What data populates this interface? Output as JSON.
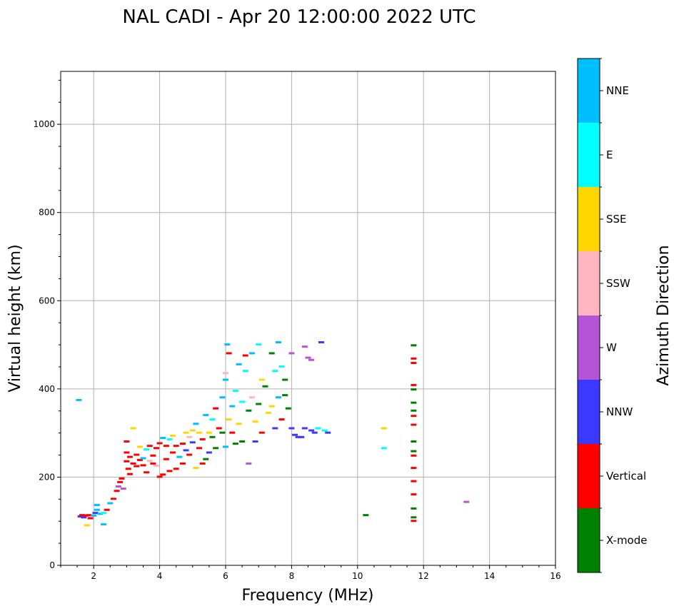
{
  "chart_data": {
    "type": "scatter",
    "title": "NAL CADI - Apr 20 12:00:00 2022 UTC",
    "xlabel": "Frequency (MHz)",
    "ylabel": "Virtual height (km)",
    "xlim": [
      1,
      16
    ],
    "ylim": [
      0,
      1120
    ],
    "xticks": [
      2,
      4,
      6,
      8,
      10,
      12,
      14,
      16
    ],
    "yticks": [
      0,
      200,
      400,
      600,
      800,
      1000
    ],
    "grid": true,
    "colorbar": {
      "label": "Azimuth Direction",
      "categories": [
        {
          "name": "X-mode",
          "color": "#008000"
        },
        {
          "name": "Vertical",
          "color": "#ff0000"
        },
        {
          "name": "NNW",
          "color": "#3a3aff"
        },
        {
          "name": "W",
          "color": "#b455d6"
        },
        {
          "name": "SSW",
          "color": "#ffb6c1"
        },
        {
          "name": "SSE",
          "color": "#ffd700"
        },
        {
          "name": "E",
          "color": "#00ffff"
        },
        {
          "name": "NNE",
          "color": "#00bfff"
        }
      ]
    },
    "points": [
      [
        1.55,
        374,
        "NNE"
      ],
      [
        1.6,
        110,
        "NNW"
      ],
      [
        1.65,
        113,
        "Vertical"
      ],
      [
        1.7,
        108,
        "NNW"
      ],
      [
        1.75,
        112,
        "Vertical"
      ],
      [
        1.8,
        90,
        "SSE"
      ],
      [
        1.85,
        113,
        "Vertical"
      ],
      [
        1.9,
        106,
        "Vertical"
      ],
      [
        2.0,
        112,
        "NNE"
      ],
      [
        2.05,
        118,
        "NNW"
      ],
      [
        2.1,
        125,
        "NNE"
      ],
      [
        2.1,
        136,
        "NNE"
      ],
      [
        2.2,
        116,
        "NNE"
      ],
      [
        2.3,
        92,
        "NNE"
      ],
      [
        2.3,
        118,
        "E"
      ],
      [
        2.4,
        125,
        "Vertical"
      ],
      [
        2.5,
        140,
        "NNE"
      ],
      [
        2.6,
        150,
        "Vertical"
      ],
      [
        2.7,
        168,
        "Vertical"
      ],
      [
        2.75,
        178,
        "W"
      ],
      [
        2.8,
        188,
        "Vertical"
      ],
      [
        2.85,
        196,
        "Vertical"
      ],
      [
        2.9,
        173,
        "W"
      ],
      [
        3.0,
        280,
        "Vertical"
      ],
      [
        3.0,
        255,
        "Vertical"
      ],
      [
        3.0,
        235,
        "Vertical"
      ],
      [
        3.05,
        218,
        "Vertical"
      ],
      [
        3.1,
        206,
        "Vertical"
      ],
      [
        3.1,
        245,
        "Vertical"
      ],
      [
        3.2,
        310,
        "SSE"
      ],
      [
        3.2,
        230,
        "Vertical"
      ],
      [
        3.3,
        250,
        "Vertical"
      ],
      [
        3.3,
        224,
        "Vertical"
      ],
      [
        3.4,
        268,
        "SSE"
      ],
      [
        3.4,
        238,
        "Vertical"
      ],
      [
        3.5,
        242,
        "NNE"
      ],
      [
        3.5,
        226,
        "Vertical"
      ],
      [
        3.6,
        262,
        "E"
      ],
      [
        3.6,
        210,
        "Vertical"
      ],
      [
        3.7,
        236,
        "SSW"
      ],
      [
        3.7,
        270,
        "Vertical"
      ],
      [
        3.8,
        248,
        "Vertical"
      ],
      [
        3.8,
        230,
        "Vertical"
      ],
      [
        3.9,
        265,
        "Vertical"
      ],
      [
        3.9,
        225,
        "SSW"
      ],
      [
        4.0,
        200,
        "Vertical"
      ],
      [
        4.0,
        276,
        "Vertical"
      ],
      [
        4.1,
        288,
        "NNE"
      ],
      [
        4.1,
        205,
        "Vertical"
      ],
      [
        4.2,
        270,
        "Vertical"
      ],
      [
        4.2,
        240,
        "Vertical"
      ],
      [
        4.3,
        213,
        "Vertical"
      ],
      [
        4.3,
        285,
        "E"
      ],
      [
        4.4,
        293,
        "SSE"
      ],
      [
        4.4,
        255,
        "Vertical"
      ],
      [
        4.5,
        218,
        "Vertical"
      ],
      [
        4.5,
        270,
        "Vertical"
      ],
      [
        4.6,
        245,
        "NNE"
      ],
      [
        4.7,
        275,
        "Vertical"
      ],
      [
        4.7,
        230,
        "Vertical"
      ],
      [
        4.8,
        300,
        "SSE"
      ],
      [
        4.8,
        260,
        "NNW"
      ],
      [
        4.9,
        290,
        "SSW"
      ],
      [
        4.9,
        250,
        "Vertical"
      ],
      [
        5.0,
        305,
        "SSE"
      ],
      [
        5.0,
        278,
        "NNW"
      ],
      [
        5.1,
        220,
        "SSE"
      ],
      [
        5.1,
        320,
        "NNE"
      ],
      [
        5.2,
        300,
        "SSE"
      ],
      [
        5.2,
        265,
        "Vertical"
      ],
      [
        5.3,
        230,
        "Vertical"
      ],
      [
        5.3,
        285,
        "Vertical"
      ],
      [
        5.4,
        340,
        "NNE"
      ],
      [
        5.4,
        240,
        "X-mode"
      ],
      [
        5.5,
        300,
        "SSE"
      ],
      [
        5.5,
        255,
        "NNW"
      ],
      [
        5.6,
        330,
        "E"
      ],
      [
        5.6,
        290,
        "X-mode"
      ],
      [
        5.7,
        355,
        "Vertical"
      ],
      [
        5.7,
        265,
        "X-mode"
      ],
      [
        5.8,
        310,
        "Vertical"
      ],
      [
        5.9,
        300,
        "X-mode"
      ],
      [
        5.9,
        380,
        "NNE"
      ],
      [
        6.0,
        420,
        "NNE"
      ],
      [
        6.0,
        435,
        "SSW"
      ],
      [
        6.0,
        268,
        "NNE"
      ],
      [
        6.05,
        500,
        "NNE"
      ],
      [
        6.1,
        480,
        "Vertical"
      ],
      [
        6.1,
        330,
        "SSE"
      ],
      [
        6.2,
        360,
        "NNE"
      ],
      [
        6.2,
        300,
        "Vertical"
      ],
      [
        6.3,
        395,
        "E"
      ],
      [
        6.3,
        275,
        "X-mode"
      ],
      [
        6.4,
        455,
        "NNE"
      ],
      [
        6.4,
        320,
        "SSE"
      ],
      [
        6.5,
        370,
        "E"
      ],
      [
        6.5,
        280,
        "X-mode"
      ],
      [
        6.6,
        475,
        "Vertical"
      ],
      [
        6.6,
        440,
        "E"
      ],
      [
        6.7,
        230,
        "W"
      ],
      [
        6.7,
        350,
        "X-mode"
      ],
      [
        6.8,
        480,
        "NNE"
      ],
      [
        6.8,
        380,
        "SSW"
      ],
      [
        6.9,
        325,
        "SSE"
      ],
      [
        6.9,
        280,
        "NNW"
      ],
      [
        7.0,
        500,
        "E"
      ],
      [
        7.0,
        365,
        "X-mode"
      ],
      [
        7.1,
        420,
        "SSE"
      ],
      [
        7.1,
        300,
        "Vertical"
      ],
      [
        7.2,
        405,
        "X-mode"
      ],
      [
        7.3,
        345,
        "SSE"
      ],
      [
        7.4,
        480,
        "X-mode"
      ],
      [
        7.4,
        360,
        "SSE"
      ],
      [
        7.5,
        440,
        "E"
      ],
      [
        7.5,
        310,
        "NNW"
      ],
      [
        7.6,
        505,
        "NNE"
      ],
      [
        7.6,
        380,
        "NNE"
      ],
      [
        7.7,
        450,
        "E"
      ],
      [
        7.7,
        330,
        "Vertical"
      ],
      [
        7.8,
        385,
        "X-mode"
      ],
      [
        7.8,
        420,
        "X-mode"
      ],
      [
        7.9,
        355,
        "X-mode"
      ],
      [
        8.0,
        480,
        "W"
      ],
      [
        8.0,
        310,
        "NNW"
      ],
      [
        8.1,
        295,
        "NNW"
      ],
      [
        8.2,
        290,
        "NNW"
      ],
      [
        8.3,
        290,
        "NNW"
      ],
      [
        8.4,
        495,
        "W"
      ],
      [
        8.4,
        310,
        "NNW"
      ],
      [
        8.5,
        470,
        "W"
      ],
      [
        8.6,
        465,
        "W"
      ],
      [
        8.6,
        305,
        "NNW"
      ],
      [
        8.7,
        300,
        "NNW"
      ],
      [
        8.8,
        310,
        "E"
      ],
      [
        8.9,
        505,
        "NNW"
      ],
      [
        9.0,
        305,
        "E"
      ],
      [
        9.1,
        300,
        "NNW"
      ],
      [
        10.25,
        113,
        "X-mode"
      ],
      [
        10.8,
        310,
        "SSE"
      ],
      [
        10.8,
        265,
        "E"
      ],
      [
        11.7,
        100,
        "Vertical"
      ],
      [
        11.7,
        108,
        "X-mode"
      ],
      [
        11.7,
        128,
        "X-mode"
      ],
      [
        11.7,
        160,
        "Vertical"
      ],
      [
        11.7,
        190,
        "Vertical"
      ],
      [
        11.7,
        220,
        "Vertical"
      ],
      [
        11.7,
        248,
        "Vertical"
      ],
      [
        11.7,
        258,
        "X-mode"
      ],
      [
        11.7,
        280,
        "X-mode"
      ],
      [
        11.7,
        318,
        "Vertical"
      ],
      [
        11.7,
        338,
        "Vertical"
      ],
      [
        11.7,
        350,
        "X-mode"
      ],
      [
        11.7,
        368,
        "X-mode"
      ],
      [
        11.7,
        398,
        "X-mode"
      ],
      [
        11.7,
        408,
        "Vertical"
      ],
      [
        11.7,
        458,
        "Vertical"
      ],
      [
        11.7,
        468,
        "Vertical"
      ],
      [
        11.7,
        498,
        "X-mode"
      ],
      [
        13.3,
        143,
        "W"
      ]
    ]
  }
}
